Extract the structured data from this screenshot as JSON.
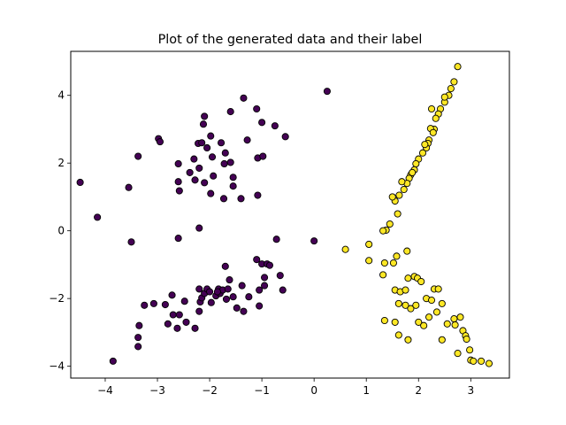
{
  "chart_data": {
    "type": "scatter",
    "title": "Plot of the generated data and their label",
    "xlabel": "",
    "ylabel": "",
    "xlim": [
      -4.66,
      3.74
    ],
    "ylim": [
      -4.35,
      5.3
    ],
    "xticks": [
      -4,
      -3,
      -2,
      -1,
      0,
      1,
      2,
      3
    ],
    "yticks": [
      -4,
      -2,
      0,
      2,
      4
    ],
    "xtick_labels": [
      "−4",
      "−3",
      "−2",
      "−1",
      "0",
      "1",
      "2",
      "3"
    ],
    "ytick_labels": [
      "−4",
      "−2",
      "0",
      "2",
      "4"
    ],
    "grid": false,
    "legend": "none",
    "series": [
      {
        "label": 0,
        "color": "#440154",
        "points": [
          [
            -4.48,
            1.43
          ],
          [
            -4.15,
            0.4
          ],
          [
            -3.55,
            1.28
          ],
          [
            -3.5,
            -0.33
          ],
          [
            -3.37,
            2.2
          ],
          [
            -2.98,
            2.72
          ],
          [
            -2.95,
            2.63
          ],
          [
            -2.6,
            1.98
          ],
          [
            -2.6,
            1.45
          ],
          [
            -2.58,
            1.18
          ],
          [
            -2.38,
            1.72
          ],
          [
            -2.3,
            2.12
          ],
          [
            -2.22,
            2.58
          ],
          [
            -2.2,
            1.85
          ],
          [
            -2.15,
            2.6
          ],
          [
            -2.12,
            3.15
          ],
          [
            -2.1,
            3.38
          ],
          [
            -2.05,
            2.45
          ],
          [
            -1.98,
            2.8
          ],
          [
            -1.95,
            2.18
          ],
          [
            -1.93,
            1.62
          ],
          [
            -1.98,
            1.1
          ],
          [
            -2.28,
            1.5
          ],
          [
            -2.1,
            1.42
          ],
          [
            -1.78,
            2.6
          ],
          [
            -1.7,
            2.3
          ],
          [
            -1.72,
            1.98
          ],
          [
            -1.6,
            2.02
          ],
          [
            -1.55,
            1.58
          ],
          [
            -1.73,
            0.95
          ],
          [
            -1.55,
            1.32
          ],
          [
            -1.6,
            3.52
          ],
          [
            -1.35,
            3.92
          ],
          [
            -1.28,
            2.68
          ],
          [
            -1.4,
            0.95
          ],
          [
            -1.08,
            1.05
          ],
          [
            -1.08,
            2.15
          ],
          [
            -0.98,
            2.2
          ],
          [
            -1.0,
            3.2
          ],
          [
            -0.75,
            3.1
          ],
          [
            -0.55,
            2.78
          ],
          [
            -1.1,
            3.6
          ],
          [
            -0.72,
            -0.25
          ],
          [
            -2.6,
            -0.22
          ],
          [
            -2.2,
            0.08
          ],
          [
            0.25,
            4.12
          ],
          [
            0.0,
            -0.3
          ],
          [
            -3.85,
            -3.85
          ],
          [
            -3.37,
            -3.42
          ],
          [
            -3.37,
            -3.15
          ],
          [
            -3.35,
            -2.8
          ],
          [
            -3.25,
            -2.2
          ],
          [
            -3.07,
            -2.15
          ],
          [
            -2.85,
            -2.18
          ],
          [
            -2.8,
            -2.75
          ],
          [
            -2.72,
            -1.9
          ],
          [
            -2.7,
            -2.48
          ],
          [
            -2.62,
            -2.88
          ],
          [
            -2.58,
            -2.48
          ],
          [
            -2.48,
            -2.08
          ],
          [
            -2.45,
            -2.7
          ],
          [
            -2.28,
            -2.88
          ],
          [
            -2.2,
            -2.38
          ],
          [
            -2.18,
            -2.1
          ],
          [
            -2.2,
            -1.72
          ],
          [
            -2.15,
            -1.98
          ],
          [
            -2.1,
            -1.85
          ],
          [
            -2.05,
            -1.72
          ],
          [
            -1.97,
            -2.12
          ],
          [
            -1.88,
            -1.92
          ],
          [
            -1.83,
            -1.72
          ],
          [
            -1.8,
            -1.85
          ],
          [
            -1.75,
            -1.75
          ],
          [
            -1.68,
            -2.02
          ],
          [
            -1.65,
            -1.72
          ],
          [
            -1.62,
            -1.45
          ],
          [
            -1.55,
            -1.95
          ],
          [
            -1.48,
            -2.28
          ],
          [
            -1.38,
            -1.62
          ],
          [
            -1.35,
            -2.38
          ],
          [
            -1.25,
            -1.95
          ],
          [
            -1.1,
            -0.85
          ],
          [
            -1.05,
            -1.75
          ],
          [
            -1.0,
            -0.98
          ],
          [
            -0.95,
            -1.38
          ],
          [
            -0.95,
            -1.62
          ],
          [
            -0.9,
            -0.98
          ],
          [
            -0.85,
            -1.02
          ],
          [
            -0.65,
            -1.32
          ],
          [
            -0.6,
            -1.75
          ],
          [
            -1.05,
            -2.22
          ],
          [
            -1.7,
            -1.05
          ],
          [
            -1.85,
            -1.8
          ],
          [
            -2.0,
            -1.8
          ]
        ]
      },
      {
        "label": 1,
        "color": "#fde725",
        "points": [
          [
            2.75,
            4.85
          ],
          [
            2.68,
            4.4
          ],
          [
            2.62,
            4.2
          ],
          [
            2.58,
            4.0
          ],
          [
            2.5,
            3.8
          ],
          [
            2.5,
            3.95
          ],
          [
            2.42,
            3.6
          ],
          [
            2.38,
            3.45
          ],
          [
            2.33,
            3.32
          ],
          [
            2.3,
            3.0
          ],
          [
            2.23,
            3.02
          ],
          [
            2.25,
            3.6
          ],
          [
            2.2,
            2.68
          ],
          [
            2.18,
            2.58
          ],
          [
            2.15,
            2.45
          ],
          [
            2.12,
            2.55
          ],
          [
            2.08,
            2.3
          ],
          [
            2.0,
            2.12
          ],
          [
            1.95,
            1.98
          ],
          [
            1.92,
            1.8
          ],
          [
            1.85,
            1.65
          ],
          [
            1.82,
            1.55
          ],
          [
            1.78,
            1.4
          ],
          [
            1.72,
            1.22
          ],
          [
            1.68,
            1.45
          ],
          [
            1.63,
            1.05
          ],
          [
            1.55,
            0.88
          ],
          [
            1.5,
            1.0
          ],
          [
            1.6,
            0.5
          ],
          [
            1.45,
            0.2
          ],
          [
            1.38,
            0.02
          ],
          [
            1.32,
            0.0
          ],
          [
            1.88,
            1.72
          ],
          [
            2.28,
            2.9
          ],
          [
            0.6,
            -0.55
          ],
          [
            1.05,
            -0.4
          ],
          [
            1.05,
            -0.88
          ],
          [
            1.32,
            -1.3
          ],
          [
            1.35,
            -0.95
          ],
          [
            1.52,
            -0.95
          ],
          [
            1.58,
            -0.75
          ],
          [
            1.78,
            -0.6
          ],
          [
            1.55,
            -1.75
          ],
          [
            1.65,
            -1.8
          ],
          [
            1.62,
            -2.15
          ],
          [
            1.75,
            -2.2
          ],
          [
            1.8,
            -1.4
          ],
          [
            1.92,
            -1.35
          ],
          [
            1.98,
            -1.4
          ],
          [
            1.85,
            -2.3
          ],
          [
            2.0,
            -2.7
          ],
          [
            2.05,
            -1.5
          ],
          [
            2.15,
            -2.0
          ],
          [
            2.25,
            -2.05
          ],
          [
            2.3,
            -1.72
          ],
          [
            2.38,
            -1.72
          ],
          [
            2.45,
            -2.15
          ],
          [
            2.55,
            -2.75
          ],
          [
            2.68,
            -2.6
          ],
          [
            2.7,
            -2.78
          ],
          [
            2.8,
            -2.55
          ],
          [
            2.85,
            -2.95
          ],
          [
            2.9,
            -3.1
          ],
          [
            2.92,
            -3.2
          ],
          [
            2.98,
            -3.52
          ],
          [
            3.0,
            -3.82
          ],
          [
            3.05,
            -3.85
          ],
          [
            3.2,
            -3.85
          ],
          [
            3.35,
            -3.92
          ],
          [
            2.75,
            -3.62
          ],
          [
            2.45,
            -3.22
          ],
          [
            1.8,
            -3.22
          ],
          [
            1.62,
            -3.08
          ],
          [
            1.35,
            -2.65
          ],
          [
            1.55,
            -2.7
          ],
          [
            1.95,
            -2.2
          ],
          [
            2.35,
            -2.4
          ],
          [
            2.2,
            -2.55
          ],
          [
            2.1,
            -2.8
          ],
          [
            1.75,
            -1.75
          ]
        ]
      }
    ]
  }
}
